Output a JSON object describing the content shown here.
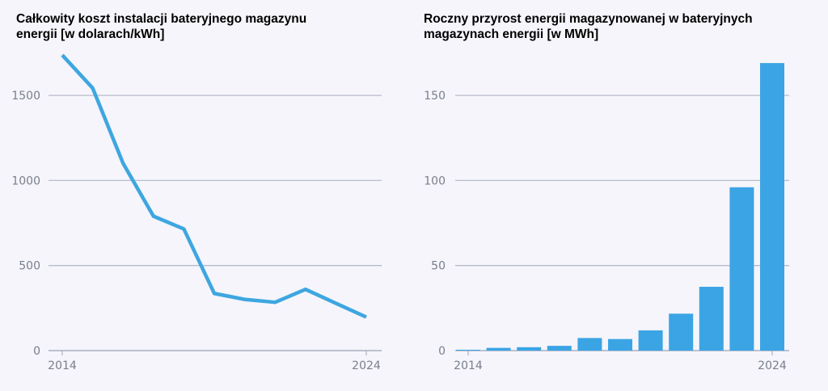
{
  "chart_data": [
    {
      "type": "line",
      "title": "Całkowity koszt instalacji bateryjnego magazynu energii [w dolarach/kWh]",
      "x": [
        2014,
        2015,
        2016,
        2017,
        2018,
        2019,
        2020,
        2021,
        2022,
        2023,
        2024
      ],
      "values": [
        1737,
        1543,
        1101,
        790,
        715,
        336,
        301,
        284,
        360,
        278,
        197
      ],
      "ylim": [
        0,
        1750
      ],
      "yticks": [
        0,
        500,
        1000,
        1500
      ],
      "xtick_labels": [
        "2014",
        "2024"
      ],
      "grid": true,
      "color": "#3ea6e0"
    },
    {
      "type": "bar",
      "title": "Roczny przyrost energii magazynowanej w bateryjnych magazynach energii [w MWh]",
      "x": [
        2014,
        2015,
        2016,
        2017,
        2018,
        2019,
        2020,
        2021,
        2022,
        2023,
        2024
      ],
      "values": [
        0.5,
        1.6,
        2,
        2.8,
        7.4,
        6.8,
        11.9,
        21.7,
        37.5,
        96,
        169
      ],
      "ylim": [
        0,
        170
      ],
      "yticks": [
        0,
        50,
        100,
        150
      ],
      "xtick_labels": [
        "2014",
        "2024"
      ],
      "grid": true,
      "color": "#3ba4e4"
    }
  ]
}
